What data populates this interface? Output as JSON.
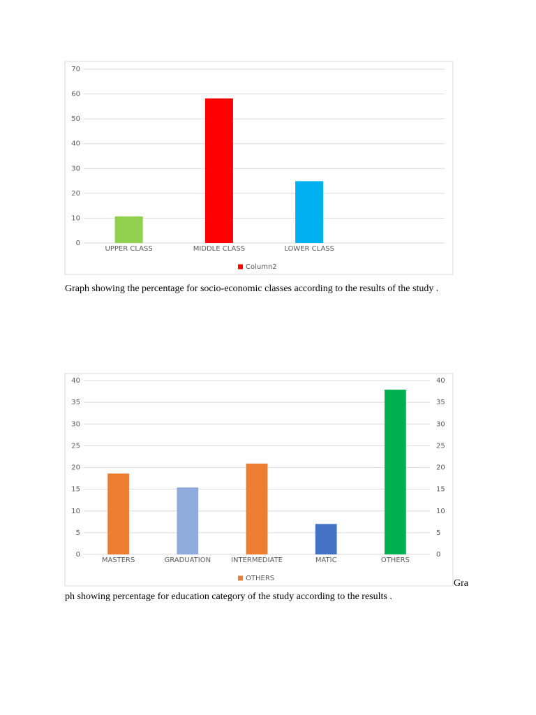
{
  "chart_data": [
    {
      "type": "bar",
      "categories": [
        "UPPER CLASS",
        "MIDDLE CLASS",
        "LOWER CLASS",
        null
      ],
      "series": [
        {
          "name": "Column2",
          "color": "#ff0000",
          "values": [
            10.7,
            58.2,
            24.9,
            null
          ]
        }
      ],
      "bar_colors": [
        "#92d050",
        "#ff0000",
        "#00b0f0",
        null
      ],
      "ylim": [
        0,
        70
      ],
      "yticks": [
        0,
        10,
        20,
        30,
        40,
        50,
        60,
        70
      ],
      "grid": true,
      "legend": "bottom"
    },
    {
      "type": "bar",
      "categories": [
        "MASTERS",
        "GRADUATION",
        "INTERMEDIATE",
        "MATIC",
        "OTHERS"
      ],
      "series": [
        {
          "name": "OTHERS",
          "color": "#ed7d31",
          "values": [
            18.6,
            15.4,
            20.9,
            7,
            37.9
          ]
        }
      ],
      "bar_colors": [
        "#ed7d31",
        "#8faadc",
        "#ed7d31",
        "#4472c4",
        "#00b050"
      ],
      "ylim": [
        0,
        40
      ],
      "yticks": [
        0,
        5,
        10,
        15,
        20,
        25,
        30,
        35,
        40
      ],
      "y2lim": [
        0,
        40
      ],
      "y2ticks": [
        0,
        5,
        10,
        15,
        20,
        25,
        30,
        35,
        40
      ],
      "grid": true,
      "legend": "bottom"
    }
  ],
  "captions": [
    "Graph showing the percentage for socio-economic classes according to the results of the study .",
    [
      "Gra",
      "ph showing percentage for education category of the study according to the results ."
    ]
  ]
}
